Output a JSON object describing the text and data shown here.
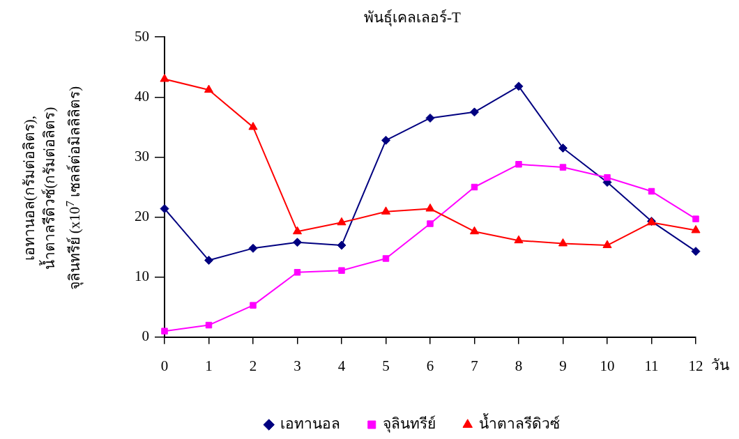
{
  "chart_data": {
    "type": "line",
    "title": "พันธุ์เคลเลอร์-T",
    "xlabel": "วัน",
    "ylabel": "เอทานอล(กรัมต่อลิตร),\nน้ำตาลรีดิวซ์(กรัมต่อลิตร)\nจุลินทรีย์ (x10$^{7}$ เซลล์ต่อมิลลิลิตร)",
    "x": [
      0,
      1,
      2,
      3,
      4,
      5,
      6,
      7,
      8,
      9,
      10,
      11,
      12
    ],
    "xlim": [
      0,
      12
    ],
    "xticks": [
      0,
      1,
      2,
      3,
      4,
      5,
      6,
      7,
      8,
      9,
      10,
      11,
      12
    ],
    "series": [
      {
        "name": "เอทานอล",
        "color": "#000080",
        "marker": "diamond",
        "values": [
          21.4,
          12.8,
          14.8,
          15.8,
          15.3,
          32.8,
          36.5,
          37.5,
          41.8,
          31.5,
          25.8,
          19.3,
          14.3
        ]
      },
      {
        "name": "จุลินทรีย์",
        "color": "#ff00ff",
        "marker": "square",
        "values": [
          1.0,
          2.0,
          5.3,
          10.8,
          11.1,
          13.1,
          18.9,
          25.0,
          28.8,
          28.3,
          26.6,
          24.3,
          19.7
        ]
      },
      {
        "name": "น้ำตาลรีดิวซ์",
        "color": "#ff0000",
        "marker": "triangle",
        "values": [
          43.0,
          41.2,
          35.0,
          17.6,
          19.1,
          20.9,
          21.4,
          17.6,
          16.1,
          15.6,
          15.3,
          19.1,
          17.8
        ]
      }
    ],
    "ylim": [
      0,
      50
    ],
    "yticks": [
      0,
      10,
      20,
      30,
      40,
      50
    ],
    "grid": false,
    "legend": "bottom",
    "line_style": "solid"
  }
}
